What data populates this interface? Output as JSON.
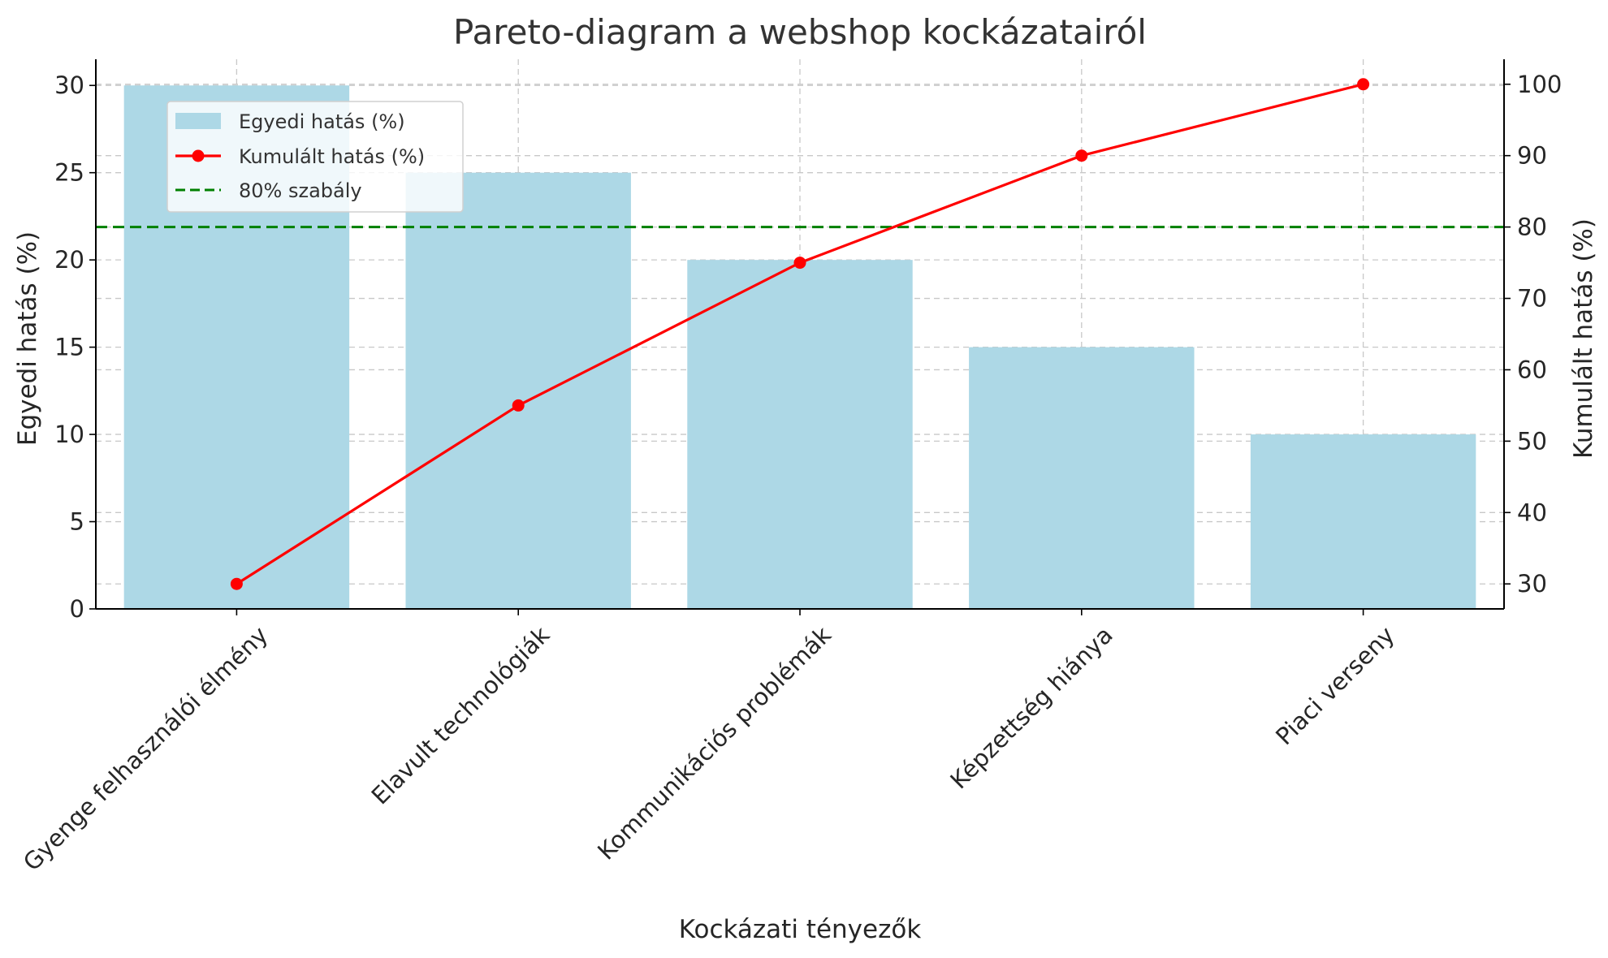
{
  "chart_data": {
    "type": "bar",
    "title": "Pareto-diagram a webshop kockázatairól",
    "xlabel": "Kockázati tényezők",
    "ylabel": "Egyedi hatás (%)",
    "ylabel_right": "Kumulált hatás (%)",
    "categories": [
      "Gyenge felhasználói élmény",
      "Elavult technológiák",
      "Kommunikációs problémák",
      "Képzettség hiánya",
      "Piaci verseny"
    ],
    "series": [
      {
        "name": "Egyedi hatás (%)",
        "type": "bar",
        "axis": "left",
        "color": "#add8e6",
        "values": [
          30,
          25,
          20,
          15,
          10
        ]
      },
      {
        "name": "Kumulált hatás (%)",
        "type": "line",
        "axis": "right",
        "color": "#ff0000",
        "marker": "circle",
        "values": [
          30,
          55,
          75,
          90,
          100
        ]
      }
    ],
    "reference_line": {
      "name": "80% szabály",
      "axis": "right",
      "value": 80,
      "color": "#008000",
      "style": "dashed"
    },
    "ylim": [
      0,
      31.5
    ],
    "ylim_right": [
      26.5,
      103.5
    ],
    "yticks": [
      0,
      5,
      10,
      15,
      20,
      25,
      30
    ],
    "yticks_right": [
      30,
      40,
      50,
      60,
      70,
      80,
      90,
      100
    ],
    "grid": true,
    "legend_position": "top-left"
  }
}
